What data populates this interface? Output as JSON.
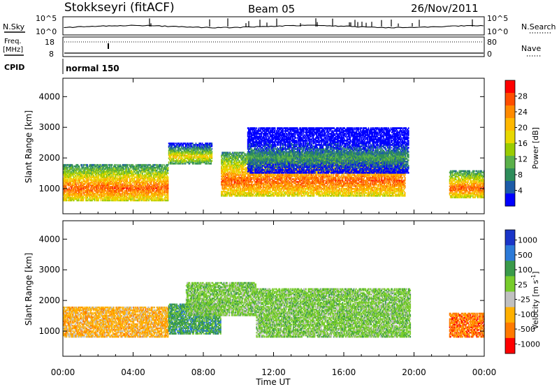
{
  "header": {
    "station": "Stokkseyri (fitACF)",
    "beam": "Beam 05",
    "date": "26/Nov/2011"
  },
  "status_panel": {
    "nsky_label": "N.Sky",
    "nsearch_label": "N.Search",
    "noise_ticks_left": [
      "10^5",
      "10^0"
    ],
    "noise_ticks_right": [
      "10^5",
      "10^0"
    ],
    "freq_label": "Freq.",
    "freq_unit": "[MHz]",
    "freq_ticks": [
      "18",
      "8"
    ],
    "nave_label": "Nave",
    "nave_ticks": [
      "80",
      "0"
    ],
    "cpid_label": "CPID",
    "cpid_value": "normal 150"
  },
  "chart_data": [
    {
      "type": "heatmap",
      "name": "power",
      "ylabel": "Slant Range [km]",
      "xlabel": "",
      "x_range_hours": [
        0,
        24
      ],
      "ylim": [
        180,
        4600
      ],
      "yticks": [
        "1000",
        "2000",
        "3000",
        "4000"
      ],
      "colorbar": {
        "label": "Power [dB]",
        "ticks": [
          "28",
          "24",
          "20",
          "16",
          "12",
          "8",
          "4"
        ],
        "colors": [
          "#ff0000",
          "#ff4e00",
          "#ff8a00",
          "#ffb800",
          "#e8d800",
          "#9acc00",
          "#5ab04a",
          "#2e8c5a",
          "#1c5ca8",
          "#0000ff"
        ]
      },
      "regions": [
        {
          "t0": 0.0,
          "t1": 6.0,
          "r0": 600,
          "r1": 1800,
          "level": "high"
        },
        {
          "t0": 6.0,
          "t1": 8.5,
          "r0": 1800,
          "r1": 2500,
          "level": "mid"
        },
        {
          "t0": 9.0,
          "t1": 19.5,
          "r0": 750,
          "r1": 2200,
          "level": "high"
        },
        {
          "t0": 10.5,
          "t1": 19.7,
          "r0": 1500,
          "r1": 3000,
          "level": "low"
        },
        {
          "t0": 22.0,
          "t1": 24.0,
          "r0": 700,
          "r1": 1600,
          "level": "high"
        }
      ]
    },
    {
      "type": "heatmap",
      "name": "velocity",
      "ylabel": "Slant Range [km]",
      "xlabel": "Time UT",
      "x_range_hours": [
        0,
        24
      ],
      "ylim": [
        180,
        4600
      ],
      "yticks": [
        "1000",
        "2000",
        "3000",
        "4000"
      ],
      "xticks": [
        "00:00",
        "04:00",
        "08:00",
        "12:00",
        "16:00",
        "20:00",
        "00:00"
      ],
      "colorbar": {
        "label": "Velocity [m s^-1]",
        "ticks": [
          "1000",
          "500",
          "100",
          "25",
          "-25",
          "-100",
          "-500",
          "-1000"
        ],
        "colors": [
          "#1a35c8",
          "#2c7ad8",
          "#3a9a4a",
          "#78cc2c",
          "#c0c0c0",
          "#ffb000",
          "#ff7a00",
          "#ff0000"
        ]
      },
      "regions": [
        {
          "t0": 0.0,
          "t1": 6.0,
          "r0": 800,
          "r1": 1800,
          "level": "-100"
        },
        {
          "t0": 6.0,
          "t1": 9.0,
          "r0": 900,
          "r1": 1900,
          "level": "100"
        },
        {
          "t0": 7.0,
          "t1": 11.0,
          "r0": 1500,
          "r1": 2600,
          "level": "25"
        },
        {
          "t0": 11.0,
          "t1": 19.8,
          "r0": 800,
          "r1": 2400,
          "level": "25"
        },
        {
          "t0": 22.0,
          "t1": 24.0,
          "r0": 800,
          "r1": 1600,
          "level": "-500"
        }
      ]
    }
  ]
}
